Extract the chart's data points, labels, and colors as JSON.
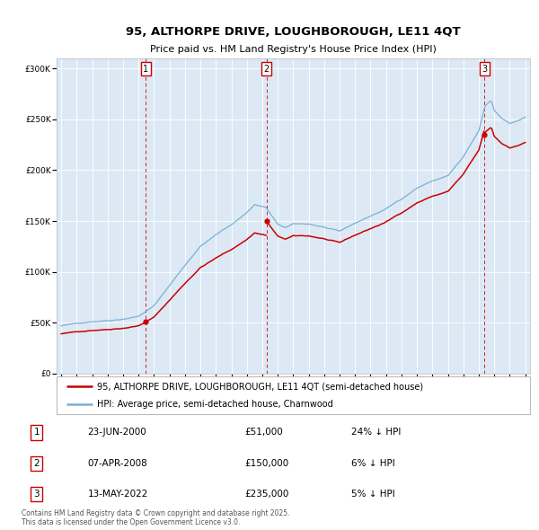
{
  "title": "95, ALTHORPE DRIVE, LOUGHBOROUGH, LE11 4QT",
  "subtitle": "Price paid vs. HM Land Registry's House Price Index (HPI)",
  "background_color": "#dce9f5",
  "plot_bg_color": "#dce9f5",
  "grid_color": "#ffffff",
  "hpi_color": "#7ab0d4",
  "price_color": "#cc0000",
  "sale_dot_color": "#cc0000",
  "dashed_line_color": "#cc0000",
  "sale_box_color": "#cc0000",
  "ylim": [
    0,
    310000
  ],
  "yticks": [
    0,
    50000,
    100000,
    150000,
    200000,
    250000,
    300000
  ],
  "ytick_labels": [
    "£0",
    "£50K",
    "£100K",
    "£150K",
    "£200K",
    "£250K",
    "£300K"
  ],
  "xstart_year": 1995,
  "xend_year": 2025,
  "sales": [
    {
      "num": 1,
      "date": "2000-06-23",
      "price": 51000,
      "label": "23-JUN-2000",
      "price_label": "£51,000",
      "hpi_label": "24% ↓ HPI"
    },
    {
      "num": 2,
      "date": "2008-04-07",
      "price": 150000,
      "label": "07-APR-2008",
      "price_label": "£150,000",
      "hpi_label": "6% ↓ HPI"
    },
    {
      "num": 3,
      "date": "2022-05-13",
      "price": 235000,
      "label": "13-MAY-2022",
      "price_label": "£235,000",
      "hpi_label": "5% ↓ HPI"
    }
  ],
  "legend_line1": "95, ALTHORPE DRIVE, LOUGHBOROUGH, LE11 4QT (semi-detached house)",
  "legend_line2": "HPI: Average price, semi-detached house, Charnwood",
  "footnote": "Contains HM Land Registry data © Crown copyright and database right 2025.\nThis data is licensed under the Open Government Licence v3.0.",
  "title_fontsize": 9.5,
  "subtitle_fontsize": 8,
  "tick_fontsize": 6.5,
  "legend_fontsize": 7,
  "table_fontsize": 7.5,
  "footnote_fontsize": 5.5
}
